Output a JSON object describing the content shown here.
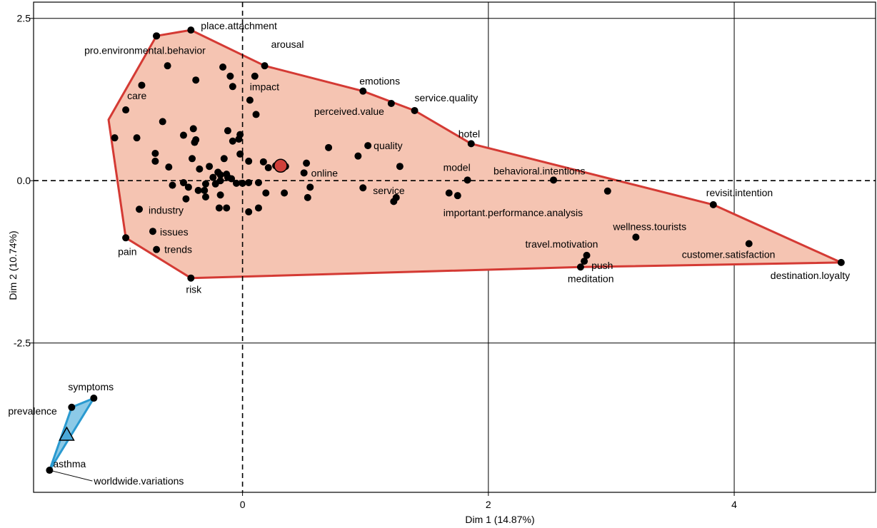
{
  "chart_data": {
    "type": "scatter",
    "title": "",
    "xlabel": "Dim 1 (14.87%)",
    "ylabel": "Dim 2 (10.74%)",
    "xlim": [
      -1.7,
      5.15
    ],
    "ylim": [
      -4.8,
      2.75
    ],
    "x_ticks": [
      {
        "v": 0,
        "label": "0"
      },
      {
        "v": 2,
        "label": "2"
      },
      {
        "v": 4,
        "label": "4"
      }
    ],
    "y_ticks": [
      {
        "v": 2.5,
        "label": "2.5"
      },
      {
        "v": 0,
        "label": "0.0"
      },
      {
        "v": -2.5,
        "label": "-2.5"
      }
    ],
    "grid": true,
    "reference_lines": [
      0,
      0
    ],
    "colors": {
      "cluster1_fill": "#f5c4b2",
      "cluster1_stroke": "#d43a34",
      "cluster1_centroid": "#d0403a",
      "cluster2_fill": "#7fc4e4",
      "cluster2_stroke": "#2a9ad0",
      "cluster2_centroid": "#4aa8d8",
      "point": "#000000"
    },
    "clusters": [
      {
        "hull": [
          [
            -0.42,
            2.32
          ],
          [
            0.18,
            1.77
          ],
          [
            0.98,
            1.38
          ],
          [
            1.4,
            1.08
          ],
          [
            1.86,
            0.57
          ],
          [
            3.83,
            -0.37
          ],
          [
            4.87,
            -1.26
          ],
          [
            2.75,
            -1.33
          ],
          [
            -0.42,
            -1.5
          ],
          [
            -0.95,
            -0.88
          ],
          [
            -1.09,
            0.94
          ],
          [
            -0.7,
            2.23
          ]
        ],
        "centroid": [
          0.31,
          0.23
        ]
      },
      {
        "hull": [
          [
            -1.21,
            -3.35
          ],
          [
            -1.39,
            -3.49
          ],
          [
            -1.57,
            -4.46
          ]
        ],
        "centroid": [
          -1.43,
          -3.91
        ]
      }
    ],
    "labeled_points": [
      {
        "label": "place.attachment",
        "x": -0.42,
        "y": 2.32
      },
      {
        "label": "pro.environmental.behavior",
        "x": -0.7,
        "y": 2.23
      },
      {
        "label": "arousal",
        "x": 0.18,
        "y": 1.77
      },
      {
        "label": "impact",
        "x": 0.1,
        "y": 1.61
      },
      {
        "label": "care",
        "x": -0.95,
        "y": 1.09
      },
      {
        "label": "emotions",
        "x": 0.98,
        "y": 1.38
      },
      {
        "label": "service.quality",
        "x": 1.4,
        "y": 1.08
      },
      {
        "label": "perceived.value",
        "x": 1.21,
        "y": 1.19
      },
      {
        "label": "hotel",
        "x": 1.86,
        "y": 0.57
      },
      {
        "label": "quality",
        "x": 1.02,
        "y": 0.54
      },
      {
        "label": "online",
        "x": 0.5,
        "y": 0.12
      },
      {
        "label": "model",
        "x": 1.83,
        "y": 0.01
      },
      {
        "label": "behavioral.intentions",
        "x": 2.53,
        "y": 0.01
      },
      {
        "label": "service",
        "x": 0.98,
        "y": -0.11
      },
      {
        "label": "important.performance.analysis",
        "x": 1.75,
        "y": -0.23
      },
      {
        "label": "revisit.intention",
        "x": 3.83,
        "y": -0.37
      },
      {
        "label": "industry",
        "x": -0.84,
        "y": -0.44
      },
      {
        "label": "issues",
        "x": -0.73,
        "y": -0.78
      },
      {
        "label": "trends",
        "x": -0.7,
        "y": -1.06
      },
      {
        "label": "pain",
        "x": -0.95,
        "y": -0.88
      },
      {
        "label": "risk",
        "x": -0.42,
        "y": -1.5
      },
      {
        "label": "wellness.tourists",
        "x": 3.2,
        "y": -0.87
      },
      {
        "label": "customer.satisfaction",
        "x": 4.12,
        "y": -0.97
      },
      {
        "label": "travel.motivation",
        "x": 2.8,
        "y": -1.15
      },
      {
        "label": "push",
        "x": 2.78,
        "y": -1.24
      },
      {
        "label": "meditation",
        "x": 2.75,
        "y": -1.33
      },
      {
        "label": "destination.loyalty",
        "x": 4.87,
        "y": -1.26
      },
      {
        "label": "symptoms",
        "x": -1.21,
        "y": -3.35
      },
      {
        "label": "prevalence",
        "x": -1.39,
        "y": -3.49
      },
      {
        "label": "asthma",
        "x": -1.57,
        "y": -4.46
      },
      {
        "label": "worldwide.variations",
        "x": -1.57,
        "y": -4.46
      }
    ],
    "other_points": [
      [
        -0.7,
        2.23
      ],
      [
        -0.61,
        1.77
      ],
      [
        -0.82,
        1.47
      ],
      [
        -0.38,
        1.55
      ],
      [
        -0.16,
        1.75
      ],
      [
        -0.08,
        1.45
      ],
      [
        -0.1,
        1.61
      ],
      [
        0.06,
        1.24
      ],
      [
        0.11,
        1.02
      ],
      [
        -1.04,
        0.66
      ],
      [
        -0.86,
        0.66
      ],
      [
        -0.65,
        0.91
      ],
      [
        -0.4,
        0.8
      ],
      [
        -0.38,
        0.63
      ],
      [
        -0.39,
        0.59
      ],
      [
        -0.48,
        0.7
      ],
      [
        -0.12,
        0.77
      ],
      [
        -0.03,
        0.64
      ],
      [
        -0.08,
        0.61
      ],
      [
        -0.02,
        0.71
      ],
      [
        -0.02,
        0.41
      ],
      [
        -0.71,
        0.42
      ],
      [
        -0.71,
        0.3
      ],
      [
        -0.6,
        0.21
      ],
      [
        -0.41,
        0.34
      ],
      [
        -0.27,
        0.22
      ],
      [
        -0.24,
        0.05
      ],
      [
        -0.35,
        0.18
      ],
      [
        -0.15,
        0.34
      ],
      [
        -0.13,
        0.1
      ],
      [
        -0.12,
        0.05
      ],
      [
        -0.18,
        0.09
      ],
      [
        -0.2,
        0.13
      ],
      [
        0.05,
        0.3
      ],
      [
        0.17,
        0.29
      ],
      [
        0.21,
        0.2
      ],
      [
        0.27,
        0.23
      ],
      [
        0.35,
        0.22
      ],
      [
        0.52,
        0.27
      ],
      [
        0.7,
        0.51
      ],
      [
        0.94,
        0.38
      ],
      [
        1.28,
        0.22
      ],
      [
        -0.57,
        -0.07
      ],
      [
        -0.48,
        -0.03
      ],
      [
        -0.44,
        -0.1
      ],
      [
        -0.3,
        -0.05
      ],
      [
        -0.31,
        -0.15
      ],
      [
        -0.22,
        -0.05
      ],
      [
        -0.18,
        0.0
      ],
      [
        -0.09,
        0.03
      ],
      [
        -0.05,
        -0.04
      ],
      [
        0.0,
        -0.04
      ],
      [
        0.05,
        -0.03
      ],
      [
        0.13,
        -0.03
      ],
      [
        -0.46,
        -0.28
      ],
      [
        -0.36,
        -0.15
      ],
      [
        -0.3,
        -0.25
      ],
      [
        -0.18,
        -0.22
      ],
      [
        -0.19,
        -0.42
      ],
      [
        -0.13,
        -0.42
      ],
      [
        0.05,
        -0.48
      ],
      [
        0.13,
        -0.42
      ],
      [
        0.19,
        -0.19
      ],
      [
        0.34,
        -0.19
      ],
      [
        0.55,
        -0.1
      ],
      [
        0.53,
        -0.26
      ],
      [
        1.23,
        -0.32
      ],
      [
        1.25,
        -0.26
      ],
      [
        1.68,
        -0.19
      ],
      [
        2.97,
        -0.16
      ]
    ]
  }
}
